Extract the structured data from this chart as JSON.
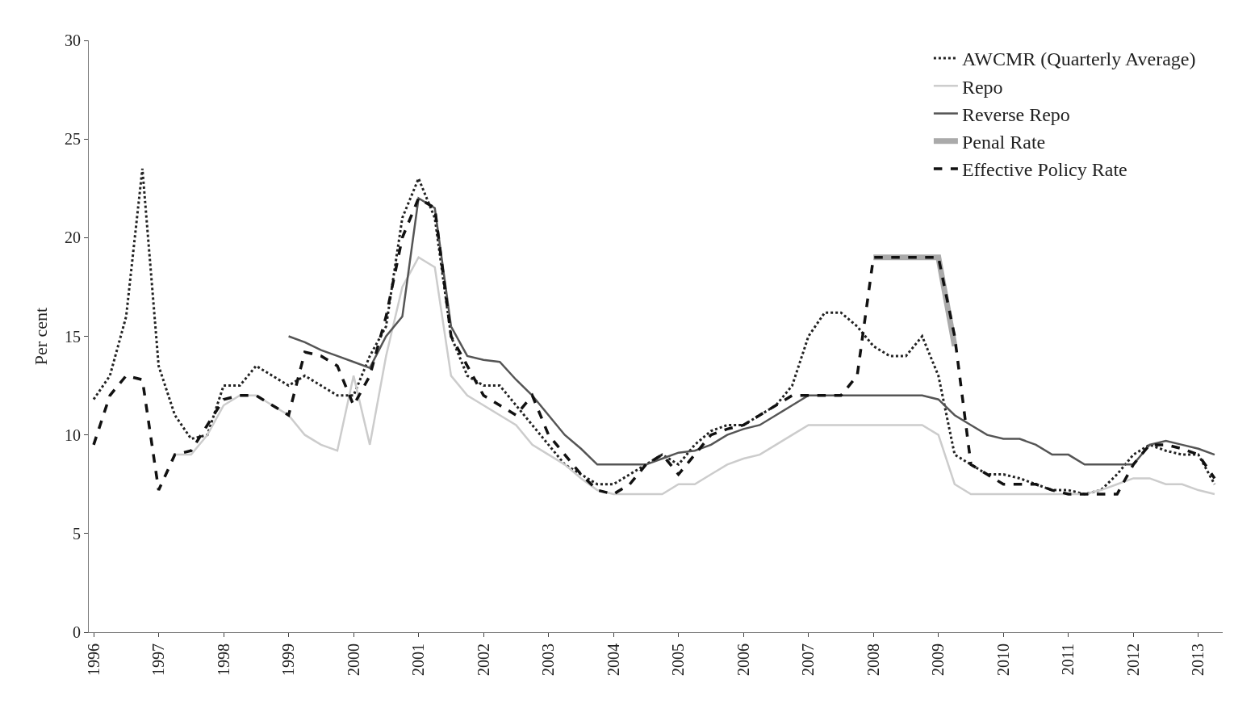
{
  "chart_data": {
    "type": "line",
    "ylabel": "Per cent",
    "categories": [
      "1996",
      null,
      null,
      null,
      "1997",
      null,
      null,
      null,
      "1998",
      null,
      null,
      null,
      "1999",
      null,
      null,
      null,
      "2000",
      null,
      null,
      null,
      "2001",
      null,
      null,
      null,
      "2002",
      null,
      null,
      null,
      "2003",
      null,
      null,
      null,
      "2004",
      null,
      null,
      null,
      "2005",
      null,
      null,
      null,
      "2006",
      null,
      null,
      null,
      "2007",
      null,
      null,
      null,
      "2008",
      null,
      null,
      null,
      "2009",
      null,
      null,
      null,
      "2010",
      null,
      null,
      null,
      "2011",
      null,
      null,
      null,
      "2012",
      null,
      null,
      null,
      "2013",
      null
    ],
    "ylim": [
      0,
      30
    ],
    "yticks": [
      0,
      5,
      10,
      15,
      20,
      25,
      30
    ],
    "legend": "top right",
    "series": [
      {
        "name": "AWCMR (Quarterly Average)",
        "color": "#222222",
        "line_style": "dotted",
        "values": [
          11.8,
          13,
          16,
          23.5,
          13.5,
          11,
          9.8,
          10,
          12.5,
          12.5,
          13.5,
          13,
          12.5,
          13,
          12.5,
          12,
          12,
          14,
          15.5,
          21,
          23,
          21,
          15,
          13,
          12.5,
          12.5,
          11.5,
          10.5,
          9.5,
          8.5,
          8,
          7.5,
          7.5,
          8,
          8.5,
          9,
          8.5,
          9.5,
          10.2,
          10.5,
          10.5,
          11,
          11.5,
          12.5,
          15,
          16.2,
          16.2,
          15.5,
          14.5,
          14,
          14,
          15,
          13,
          9,
          8.5,
          8,
          8,
          7.8,
          7.5,
          7.2,
          7.2,
          7,
          7.2,
          8,
          9,
          9.5,
          9.2,
          9,
          9,
          7.5
        ]
      },
      {
        "name": "Repo",
        "color": "#cccccc",
        "line_style": "solid",
        "values": [
          null,
          null,
          null,
          null,
          null,
          9,
          9,
          10,
          11.5,
          12,
          12,
          11.5,
          11,
          10,
          9.5,
          9.2,
          13,
          9.5,
          14,
          17.5,
          19,
          18.5,
          13,
          12,
          11.5,
          11,
          10.5,
          9.5,
          9,
          8.5,
          7.8,
          7.2,
          7,
          7,
          7,
          7,
          7.5,
          7.5,
          8,
          8.5,
          8.8,
          9,
          9.5,
          10,
          10.5,
          10.5,
          10.5,
          10.5,
          10.5,
          10.5,
          10.5,
          10.5,
          10,
          7.5,
          7,
          7,
          7,
          7,
          7,
          7,
          7,
          7,
          7.2,
          7.5,
          7.8,
          7.8,
          7.5,
          7.5,
          7.2,
          7
        ]
      },
      {
        "name": "Reverse Repo",
        "color": "#555555",
        "line_style": "solid",
        "values": [
          null,
          null,
          null,
          null,
          null,
          null,
          null,
          null,
          null,
          null,
          null,
          null,
          15,
          14.7,
          14.3,
          14,
          13.7,
          13.4,
          15,
          16,
          22,
          21.5,
          15.5,
          14,
          13.8,
          13.7,
          12.8,
          12,
          11,
          10,
          9.3,
          8.5,
          8.5,
          8.5,
          8.5,
          8.8,
          9.1,
          9.2,
          9.5,
          10,
          10.3,
          10.5,
          11,
          11.5,
          12,
          12,
          12,
          12,
          12,
          12,
          12,
          12,
          11.8,
          11,
          10.5,
          10,
          9.8,
          9.8,
          9.5,
          9,
          9,
          8.5,
          8.5,
          8.5,
          8.5,
          9.5,
          9.7,
          9.5,
          9.3,
          9
        ]
      },
      {
        "name": "Penal Rate",
        "color": "#aaaaaa",
        "line_style": "solid",
        "values": [
          null,
          null,
          null,
          null,
          null,
          null,
          null,
          null,
          null,
          null,
          null,
          null,
          null,
          null,
          null,
          null,
          null,
          null,
          null,
          null,
          null,
          null,
          null,
          null,
          null,
          null,
          null,
          null,
          null,
          null,
          null,
          null,
          null,
          null,
          null,
          null,
          null,
          null,
          null,
          null,
          null,
          null,
          null,
          null,
          null,
          null,
          null,
          null,
          19,
          19,
          19,
          19,
          19,
          14.5,
          null,
          null,
          null,
          null,
          null,
          null,
          null,
          null,
          null,
          null,
          null,
          null,
          null,
          null,
          null,
          null
        ]
      },
      {
        "name": "Effective Policy Rate",
        "color": "#111111",
        "line_style": "dashed",
        "values": [
          9.5,
          12,
          13,
          12.8,
          7.2,
          9,
          9.2,
          10.5,
          11.8,
          12,
          12,
          11.5,
          11,
          14.2,
          14,
          13.5,
          11.5,
          13,
          16,
          20,
          22,
          21.5,
          15,
          13.5,
          12,
          11.5,
          11,
          12,
          10,
          9,
          8,
          7.2,
          7,
          7.5,
          8.5,
          9,
          8,
          9,
          10,
          10.3,
          10.5,
          11,
          11.5,
          12,
          12,
          12,
          12,
          13,
          19,
          19,
          19,
          19,
          19,
          15,
          8.5,
          8,
          7.5,
          7.5,
          7.5,
          7.2,
          7,
          7,
          7,
          7,
          8.5,
          9.5,
          9.5,
          9.3,
          9,
          7.8
        ]
      }
    ]
  }
}
